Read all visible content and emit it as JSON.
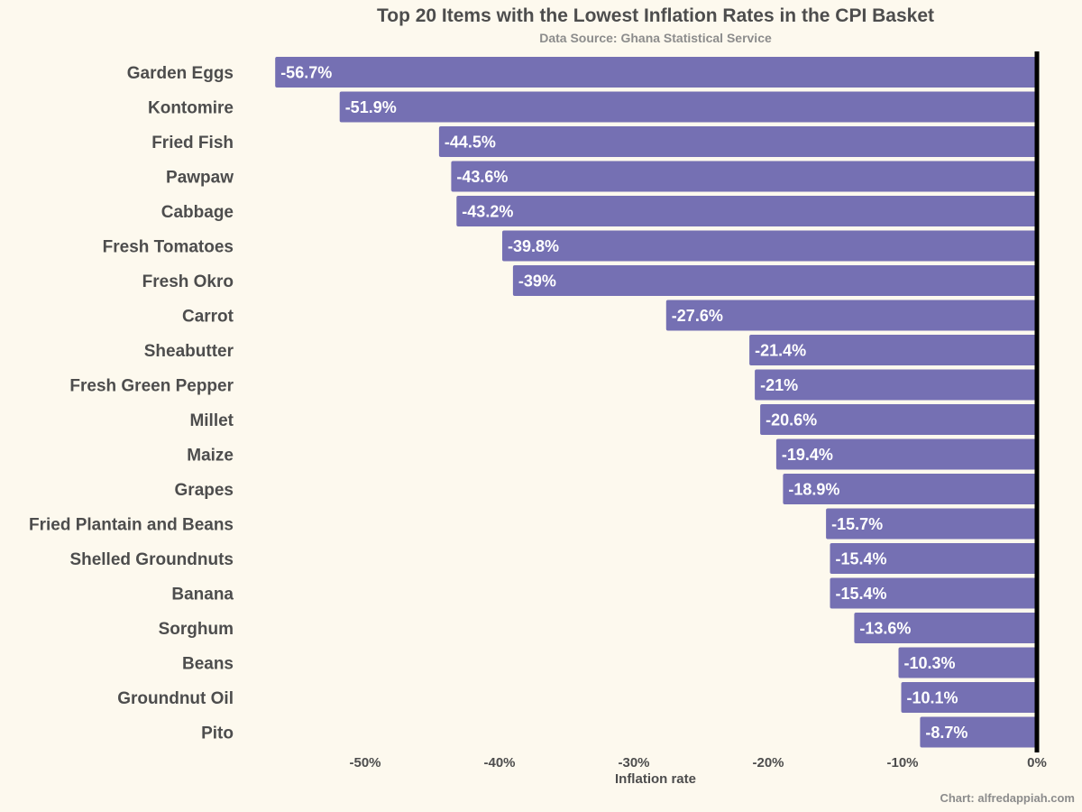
{
  "chart_data": {
    "type": "bar",
    "orientation": "horizontal",
    "title": "Top 20 Items with the Lowest Inflation Rates in the CPI Basket",
    "subtitle": "Data Source: Ghana Statistical Service",
    "xlabel": "Inflation rate",
    "ylabel": "",
    "caption": "Chart: alfredappiah.com",
    "xlim": [
      -57,
      0
    ],
    "xticks": [
      -50,
      -40,
      -30,
      -20,
      -10,
      0
    ],
    "xtick_labels": [
      "-50%",
      "-40%",
      "-30%",
      "-20%",
      "-10%",
      "0%"
    ],
    "grid": false,
    "bar_color": "#7570b3",
    "zero_line_color": "#000000",
    "categories": [
      "Garden Eggs",
      "Kontomire",
      "Fried Fish",
      "Pawpaw",
      "Cabbage",
      "Fresh Tomatoes",
      "Fresh Okro",
      "Carrot",
      "Sheabutter",
      "Fresh Green Pepper",
      "Millet",
      "Maize",
      "Grapes",
      "Fried Plantain and Beans",
      "Shelled Groundnuts",
      "Banana",
      "Sorghum",
      "Beans",
      "Groundnut Oil",
      "Pito"
    ],
    "values": [
      -56.7,
      -51.9,
      -44.5,
      -43.6,
      -43.2,
      -39.8,
      -39,
      -27.6,
      -21.4,
      -21,
      -20.6,
      -19.4,
      -18.9,
      -15.7,
      -15.4,
      -15.4,
      -13.6,
      -10.3,
      -10.1,
      -8.7
    ],
    "value_labels": [
      "-56.7%",
      "-51.9%",
      "-44.5%",
      "-43.6%",
      "-43.2%",
      "-39.8%",
      "-39%",
      "-27.6%",
      "-21.4%",
      "-21%",
      "-20.6%",
      "-19.4%",
      "-18.9%",
      "-15.7%",
      "-15.4%",
      "-15.4%",
      "-13.6%",
      "-10.3%",
      "-10.1%",
      "-8.7%"
    ]
  }
}
